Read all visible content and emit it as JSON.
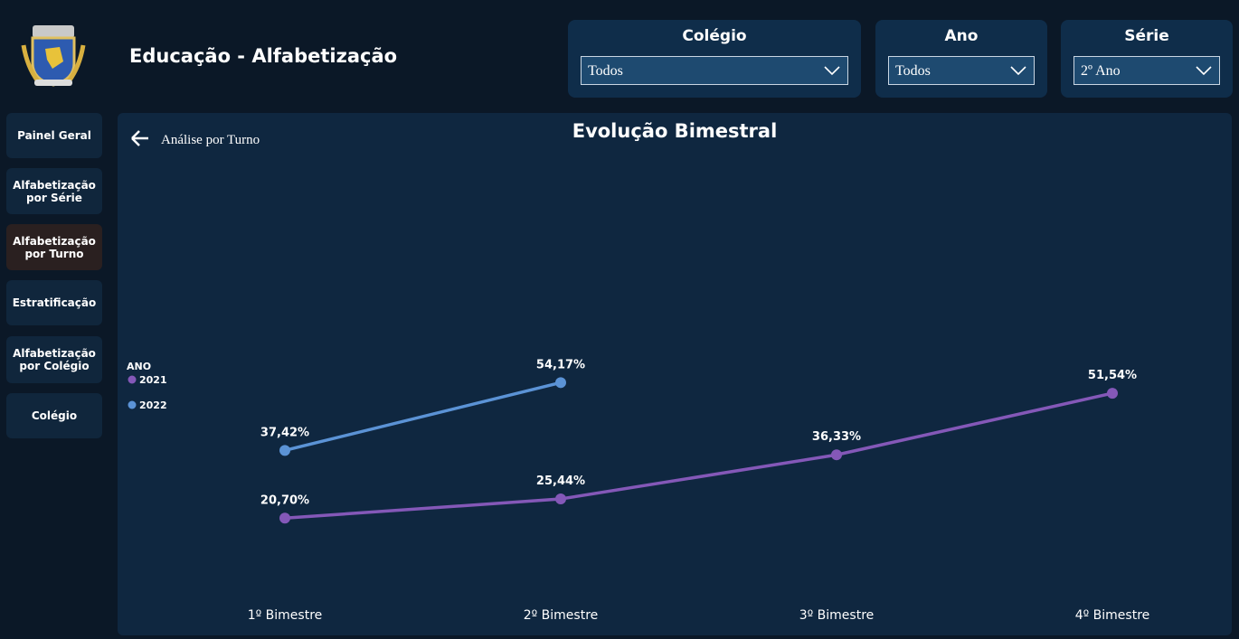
{
  "header": {
    "title": "Educação - Alfabetização"
  },
  "filters": [
    {
      "label": "Colégio",
      "value": "Todos"
    },
    {
      "label": "Ano",
      "value": "Todos"
    },
    {
      "label": "Série",
      "value": "2º Ano"
    }
  ],
  "nav": [
    "Painel Geral",
    "Alfabetização por Série",
    "Alfabetização por Turno",
    "Estratificação",
    "Alfabetização por Colégio",
    "Colégio"
  ],
  "back_link": "Análise por Turno",
  "chart_data": {
    "type": "line",
    "title": "Evolução Bimestral",
    "legend_title": "ANO",
    "legend": "left",
    "categories": [
      "1º Bimestre",
      "2º Bimestre",
      "3º Bimestre",
      "4º Bimestre"
    ],
    "ylim": [
      0,
      100
    ],
    "series": [
      {
        "name": "2021",
        "color": "#8458b8",
        "values": [
          20.7,
          25.44,
          36.33,
          51.54
        ],
        "value_labels": [
          "20,70%",
          "25,44%",
          "36,33%",
          "51,54%"
        ]
      },
      {
        "name": "2022",
        "color": "#5b93d6",
        "values": [
          37.42,
          54.17,
          null,
          null
        ],
        "value_labels": [
          "37,42%",
          "54,17%",
          null,
          null
        ]
      }
    ]
  }
}
